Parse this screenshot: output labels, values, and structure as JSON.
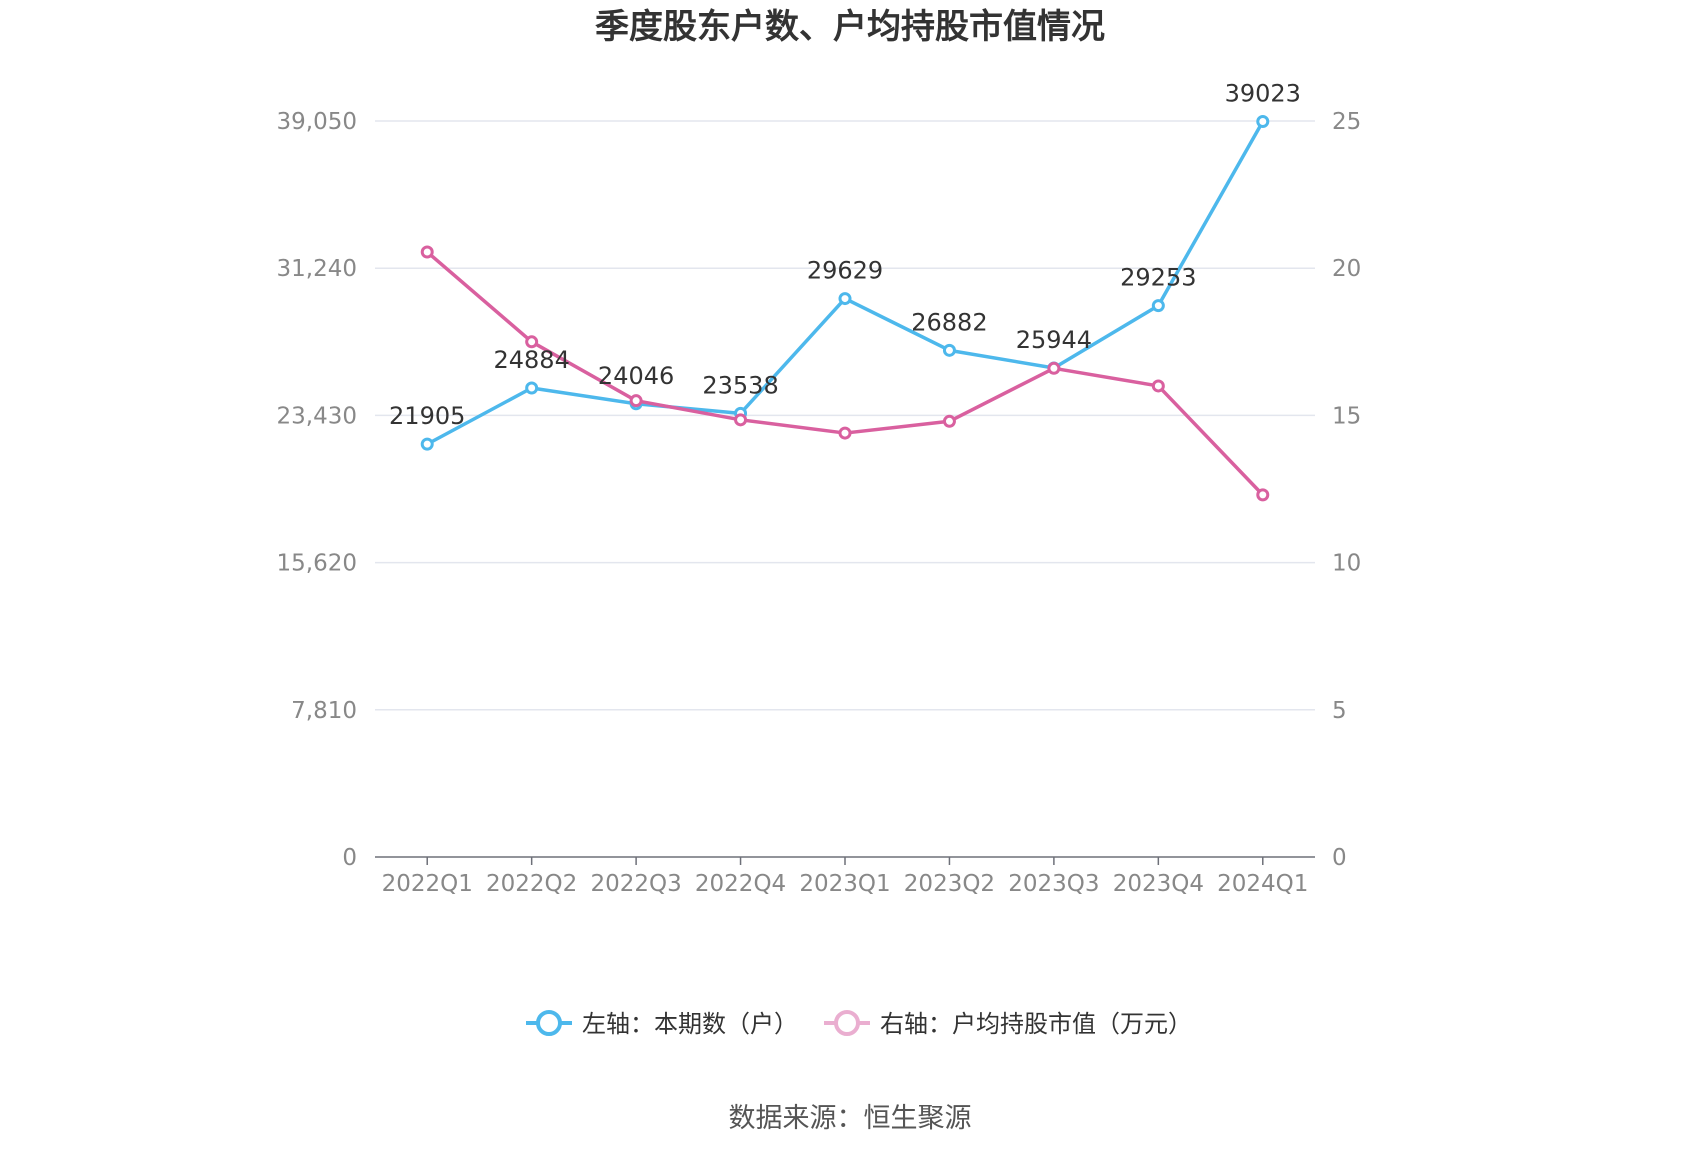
{
  "chart_data": {
    "type": "line",
    "title": "季度股东户数、户均持股市值情况",
    "categories": [
      "2022Q1",
      "2022Q2",
      "2022Q3",
      "2022Q4",
      "2023Q1",
      "2023Q2",
      "2023Q3",
      "2023Q4",
      "2024Q1"
    ],
    "left_axis": {
      "ticks": [
        "0",
        "7,810",
        "15,620",
        "23,430",
        "31,240",
        "39,050"
      ],
      "ylim": [
        0,
        39050
      ]
    },
    "right_axis": {
      "ticks": [
        "0",
        "5",
        "10",
        "15",
        "20",
        "25"
      ],
      "ylim": [
        0,
        25
      ]
    },
    "series": [
      {
        "name": "左轴：本期数（户）",
        "axis": "left",
        "color": "#4db8ec",
        "values": [
          21905,
          24884,
          24046,
          23538,
          29629,
          26882,
          25944,
          29253,
          39023
        ],
        "labels": [
          "21905",
          "24884",
          "24046",
          "23538",
          "29629",
          "26882",
          "25944",
          "29253",
          "39023"
        ]
      },
      {
        "name": "右轴：户均持股市值（万元）",
        "axis": "right",
        "color": "#d9609f",
        "values": [
          20.55,
          17.5,
          15.5,
          14.85,
          14.4,
          14.8,
          16.6,
          16.0,
          12.3
        ]
      }
    ],
    "grid": true,
    "legend": "bottom"
  },
  "source": "数据来源：恒生聚源"
}
